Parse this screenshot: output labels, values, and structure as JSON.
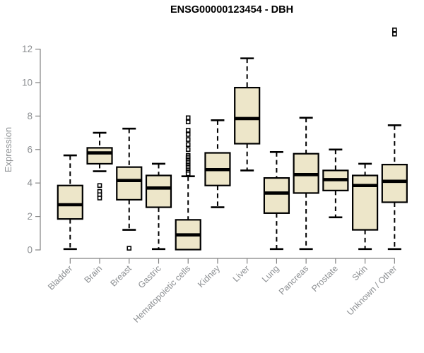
{
  "header": {
    "title": "ENSG00000123454 - DBH"
  },
  "chart_data": {
    "type": "boxplot",
    "title": "ENSG00000123454 - DBH",
    "xlabel": "",
    "ylabel": "Expression",
    "ylim": [
      0,
      12
    ],
    "yticks": [
      0,
      2,
      4,
      6,
      8,
      10,
      12
    ],
    "grid": false,
    "legend": "none",
    "colors": {
      "box_fill": "#ede6c9",
      "box_stroke": "#000000",
      "axis_line": "#828282",
      "axis_text": "#8c8f92",
      "title_text": "#000000"
    },
    "categories": [
      "Bladder",
      "Brain",
      "Breast",
      "Gastric",
      "Hematopoietic cells",
      "Kidney",
      "Liver",
      "Lung",
      "Pancreas",
      "Prostate",
      "Skin",
      "Unknown / Other"
    ],
    "series": [
      {
        "category": "Bladder",
        "whisker_low": 0.05,
        "q1": 1.85,
        "median": 2.7,
        "q3": 3.85,
        "whisker_high": 5.65,
        "outliers": []
      },
      {
        "category": "Brain",
        "whisker_low": 4.7,
        "q1": 5.15,
        "median": 5.8,
        "q3": 6.1,
        "whisker_high": 7.0,
        "outliers": [
          3.85,
          3.5,
          3.3,
          3.1
        ]
      },
      {
        "category": "Breast",
        "whisker_low": 1.2,
        "q1": 3.0,
        "median": 4.15,
        "q3": 4.95,
        "whisker_high": 7.25,
        "outliers": [
          0.1
        ]
      },
      {
        "category": "Gastric",
        "whisker_low": 0.05,
        "q1": 2.55,
        "median": 3.7,
        "q3": 4.45,
        "whisker_high": 5.15,
        "outliers": []
      },
      {
        "category": "Hematopoietic cells",
        "whisker_low": 0.02,
        "q1": 0.02,
        "median": 0.9,
        "q3": 1.8,
        "whisker_high": 4.4,
        "outliers": [
          7.9,
          7.65,
          7.15,
          6.9,
          6.6,
          6.3,
          6.0,
          5.65,
          5.55,
          5.45,
          5.35,
          5.25,
          5.15,
          5.05,
          4.95,
          4.85,
          4.75,
          4.65,
          4.55
        ]
      },
      {
        "category": "Kidney",
        "whisker_low": 2.55,
        "q1": 3.85,
        "median": 4.8,
        "q3": 5.8,
        "whisker_high": 7.75,
        "outliers": []
      },
      {
        "category": "Liver",
        "whisker_low": 4.75,
        "q1": 6.35,
        "median": 7.85,
        "q3": 9.7,
        "whisker_high": 11.45,
        "outliers": []
      },
      {
        "category": "Lung",
        "whisker_low": 0.05,
        "q1": 2.2,
        "median": 3.4,
        "q3": 4.3,
        "whisker_high": 5.85,
        "outliers": []
      },
      {
        "category": "Pancreas",
        "whisker_low": 0.05,
        "q1": 3.4,
        "median": 4.5,
        "q3": 5.75,
        "whisker_high": 7.9,
        "outliers": []
      },
      {
        "category": "Prostate",
        "whisker_low": 1.95,
        "q1": 3.55,
        "median": 4.2,
        "q3": 4.75,
        "whisker_high": 6.0,
        "outliers": []
      },
      {
        "category": "Skin",
        "whisker_low": 0.05,
        "q1": 1.2,
        "median": 3.85,
        "q3": 4.45,
        "whisker_high": 5.15,
        "outliers": []
      },
      {
        "category": "Unknown / Other",
        "whisker_low": 0.05,
        "q1": 2.85,
        "median": 4.1,
        "q3": 5.1,
        "whisker_high": 7.45,
        "outliers": [
          12.9,
          13.15
        ]
      }
    ]
  }
}
